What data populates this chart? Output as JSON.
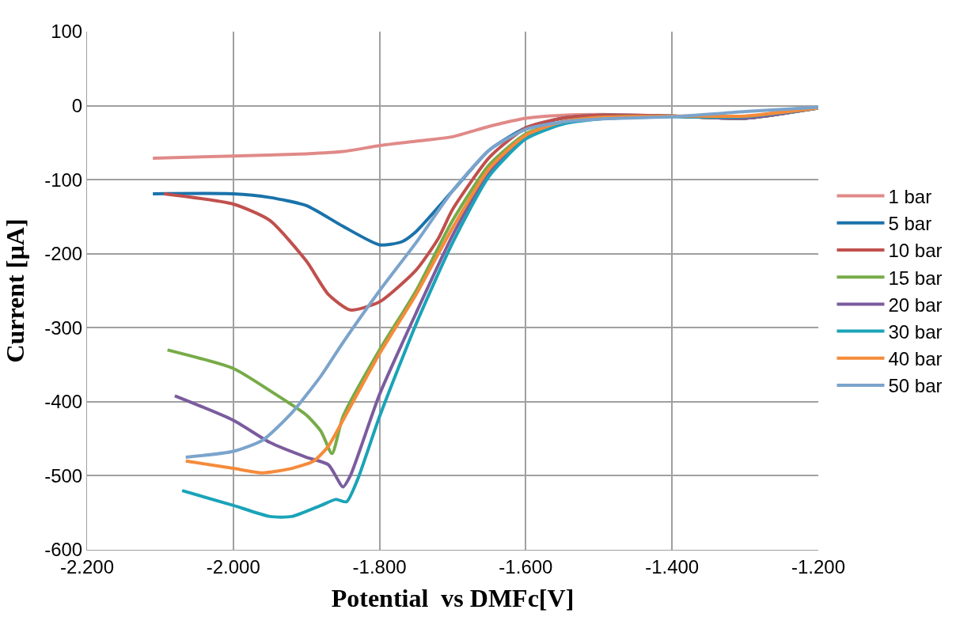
{
  "chart_data": {
    "type": "line",
    "xlabel": "Potential  vs DMFc[V]",
    "ylabel": "Current [µA]",
    "xlim": [
      -2.2,
      -1.2
    ],
    "xticks": [
      {
        "value": -2.2,
        "label": "-2.200"
      },
      {
        "value": -2.0,
        "label": "-2.000"
      },
      {
        "value": -1.8,
        "label": "-1.800"
      },
      {
        "value": -1.6,
        "label": "-1.600"
      },
      {
        "value": -1.4,
        "label": "-1.400"
      },
      {
        "value": -1.2,
        "label": "-1.200"
      }
    ],
    "ylim": [
      -600,
      100
    ],
    "yticks": [
      -600,
      -500,
      -400,
      -300,
      -200,
      -100,
      0,
      100
    ],
    "grid": true,
    "legend": "right",
    "marker": "none",
    "line_style": "solid",
    "series": [
      {
        "name": "1 bar",
        "color": "#e08a88",
        "x": [
          -2.11,
          -2.0,
          -1.9,
          -1.85,
          -1.8,
          -1.75,
          -1.7,
          -1.65,
          -1.6,
          -1.55,
          -1.5,
          -1.4,
          -1.3,
          -1.25,
          -1.2
        ],
        "values": [
          -71,
          -68,
          -65,
          -62,
          -54,
          -48,
          -42,
          -28,
          -17,
          -13,
          -12,
          -14,
          -16,
          -8,
          -3
        ]
      },
      {
        "name": "5 bar",
        "color": "#1a72aa",
        "x": [
          -2.11,
          -2.0,
          -1.95,
          -1.9,
          -1.85,
          -1.8,
          -1.77,
          -1.75,
          -1.7,
          -1.65,
          -1.6,
          -1.55,
          -1.5,
          -1.4,
          -1.3,
          -1.2
        ],
        "values": [
          -119,
          -119,
          -124,
          -135,
          -163,
          -188,
          -184,
          -170,
          -115,
          -60,
          -30,
          -17,
          -13,
          -14,
          -17,
          -3
        ]
      },
      {
        "name": "10 bar",
        "color": "#c0504d",
        "x": [
          -2.095,
          -2.0,
          -1.95,
          -1.9,
          -1.87,
          -1.84,
          -1.8,
          -1.75,
          -1.72,
          -1.7,
          -1.65,
          -1.6,
          -1.55,
          -1.5,
          -1.4,
          -1.3,
          -1.2
        ],
        "values": [
          -119,
          -133,
          -155,
          -210,
          -255,
          -276,
          -265,
          -222,
          -180,
          -140,
          -70,
          -30,
          -17,
          -13,
          -14,
          -17,
          -3
        ]
      },
      {
        "name": "15 bar",
        "color": "#77ab48",
        "x": [
          -2.09,
          -2.0,
          -1.95,
          -1.9,
          -1.88,
          -1.865,
          -1.85,
          -1.8,
          -1.75,
          -1.7,
          -1.65,
          -1.6,
          -1.55,
          -1.5,
          -1.4,
          -1.3,
          -1.2
        ],
        "values": [
          -330,
          -355,
          -385,
          -418,
          -440,
          -470,
          -420,
          -330,
          -250,
          -155,
          -80,
          -38,
          -22,
          -16,
          -14,
          -17,
          -3
        ]
      },
      {
        "name": "20 bar",
        "color": "#7b5c9e",
        "x": [
          -2.08,
          -2.0,
          -1.95,
          -1.9,
          -1.87,
          -1.85,
          -1.84,
          -1.8,
          -1.75,
          -1.7,
          -1.65,
          -1.6,
          -1.55,
          -1.5,
          -1.4,
          -1.3,
          -1.2
        ],
        "values": [
          -392,
          -425,
          -455,
          -475,
          -485,
          -515,
          -500,
          -390,
          -280,
          -175,
          -90,
          -42,
          -23,
          -17,
          -14,
          -17,
          -3
        ]
      },
      {
        "name": "30 bar",
        "color": "#1aa3b8",
        "x": [
          -2.07,
          -2.0,
          -1.95,
          -1.92,
          -1.88,
          -1.86,
          -1.845,
          -1.83,
          -1.8,
          -1.75,
          -1.7,
          -1.65,
          -1.6,
          -1.55,
          -1.5,
          -1.4,
          -1.3,
          -1.2
        ],
        "values": [
          -520,
          -540,
          -555,
          -555,
          -540,
          -532,
          -535,
          -505,
          -420,
          -295,
          -185,
          -95,
          -45,
          -25,
          -18,
          -15,
          -15,
          -3
        ]
      },
      {
        "name": "40 bar",
        "color": "#f58b3a",
        "x": [
          -2.065,
          -2.0,
          -1.96,
          -1.92,
          -1.89,
          -1.87,
          -1.85,
          -1.8,
          -1.75,
          -1.7,
          -1.65,
          -1.6,
          -1.55,
          -1.5,
          -1.4,
          -1.3,
          -1.2
        ],
        "values": [
          -480,
          -490,
          -496,
          -490,
          -480,
          -460,
          -425,
          -335,
          -255,
          -165,
          -85,
          -40,
          -22,
          -16,
          -14,
          -14,
          -3
        ]
      },
      {
        "name": "50 bar",
        "color": "#7ba4cc",
        "x": [
          -2.065,
          -2.0,
          -1.96,
          -1.92,
          -1.88,
          -1.85,
          -1.8,
          -1.75,
          -1.7,
          -1.65,
          -1.6,
          -1.55,
          -1.5,
          -1.4,
          -1.3,
          -1.2
        ],
        "values": [
          -475,
          -467,
          -452,
          -415,
          -365,
          -320,
          -250,
          -185,
          -115,
          -60,
          -32,
          -22,
          -18,
          -15,
          -8,
          -2
        ]
      }
    ]
  }
}
